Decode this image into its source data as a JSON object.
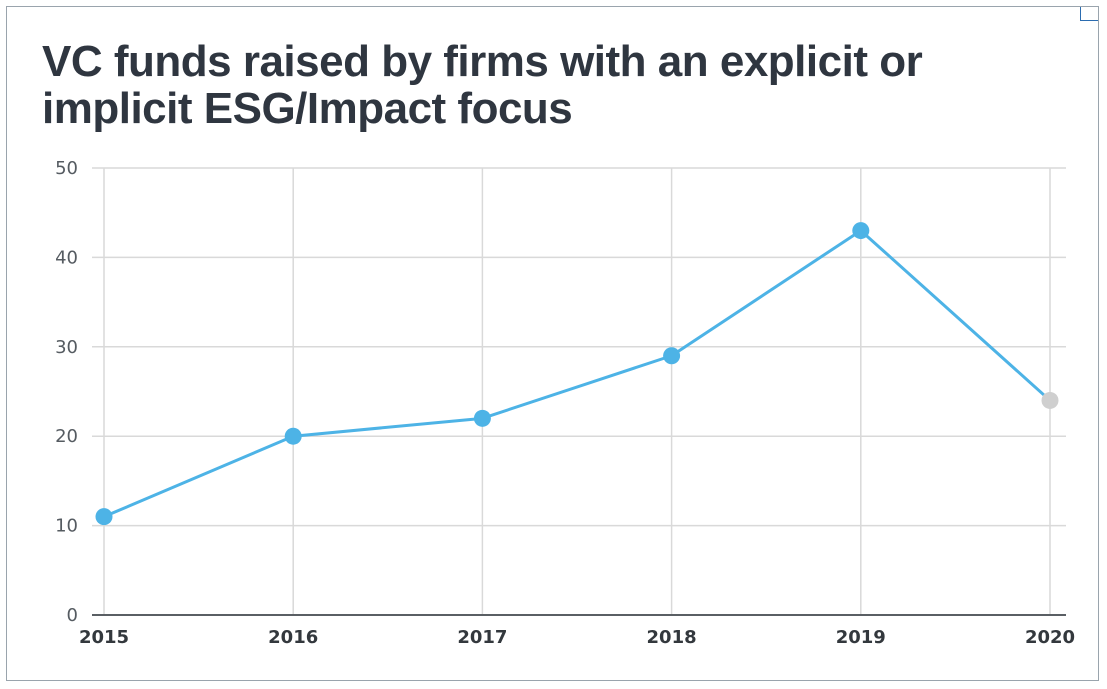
{
  "chart_data": {
    "type": "line",
    "title": "VC funds raised by firms with an explicit or implicit ESG/Impact focus",
    "xlabel": "",
    "ylabel": "",
    "categories": [
      "2015",
      "2016",
      "2017",
      "2018",
      "2019",
      "2020"
    ],
    "series": [
      {
        "values": [
          11,
          20,
          22,
          29,
          43,
          24
        ]
      }
    ],
    "ylim": [
      0,
      50
    ],
    "yticks": [
      0,
      10,
      20,
      30,
      40,
      50
    ],
    "grid": true,
    "legend": "none",
    "colors": {
      "line": "#4db3e6",
      "point": "#4db3e6",
      "last_point": "#cfcfcf",
      "grid": "#d9d9d9",
      "axis": "#5a5f64"
    }
  }
}
